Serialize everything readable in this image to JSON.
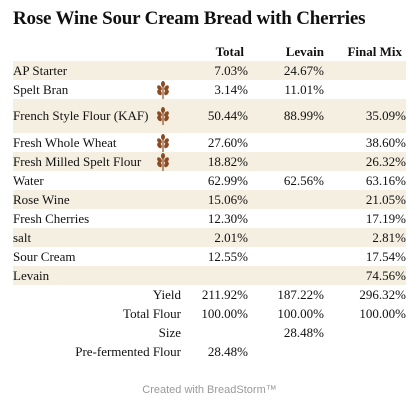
{
  "title": "Rose Wine Sour Cream Bread with Cherries",
  "columns": [
    "",
    "Total",
    "Levain",
    "Final Mix"
  ],
  "ingredients": [
    {
      "name": "AP Starter",
      "total": "7.03%",
      "levain": "24.67%",
      "final": "",
      "grain_icon": false
    },
    {
      "name": "Spelt Bran",
      "total": "3.14%",
      "levain": "11.01%",
      "final": "",
      "grain_icon": true
    },
    {
      "name": "French Style Flour (KAF)",
      "total": "50.44%",
      "levain": "88.99%",
      "final": "35.09%",
      "grain_icon": true
    },
    {
      "name": "Fresh Whole Wheat",
      "total": "27.60%",
      "levain": "",
      "final": "38.60%",
      "grain_icon": true
    },
    {
      "name": "Fresh Milled Spelt Flour",
      "total": "18.82%",
      "levain": "",
      "final": "26.32%",
      "grain_icon": true
    },
    {
      "name": "Water",
      "total": "62.99%",
      "levain": "62.56%",
      "final": "63.16%",
      "grain_icon": false
    },
    {
      "name": "Rose Wine",
      "total": "15.06%",
      "levain": "",
      "final": "21.05%",
      "grain_icon": false
    },
    {
      "name": "Fresh Cherries",
      "total": "12.30%",
      "levain": "",
      "final": "17.19%",
      "grain_icon": false
    },
    {
      "name": "salt",
      "total": "2.01%",
      "levain": "",
      "final": "2.81%",
      "grain_icon": false
    },
    {
      "name": "Sour Cream",
      "total": "12.55%",
      "levain": "",
      "final": "17.54%",
      "grain_icon": false
    },
    {
      "name": "Levain",
      "total": "",
      "levain": "",
      "final": "74.56%",
      "grain_icon": false
    }
  ],
  "summary": [
    {
      "label": "Yield",
      "total": "211.92%",
      "levain": "187.22%",
      "final": "296.32%"
    },
    {
      "label": "Total Flour",
      "total": "100.00%",
      "levain": "100.00%",
      "final": "100.00%"
    },
    {
      "label": "Size",
      "total": "",
      "levain": "28.48%",
      "final": ""
    },
    {
      "label": "Pre-fermented Flour",
      "total": "28.48%",
      "levain": "",
      "final": ""
    }
  ],
  "footer": "Created with BreadStorm™",
  "colors": {
    "row_shade": "#f5efe2",
    "grain_icon": "#8b4a22",
    "footer_text": "#9a9a9a"
  }
}
